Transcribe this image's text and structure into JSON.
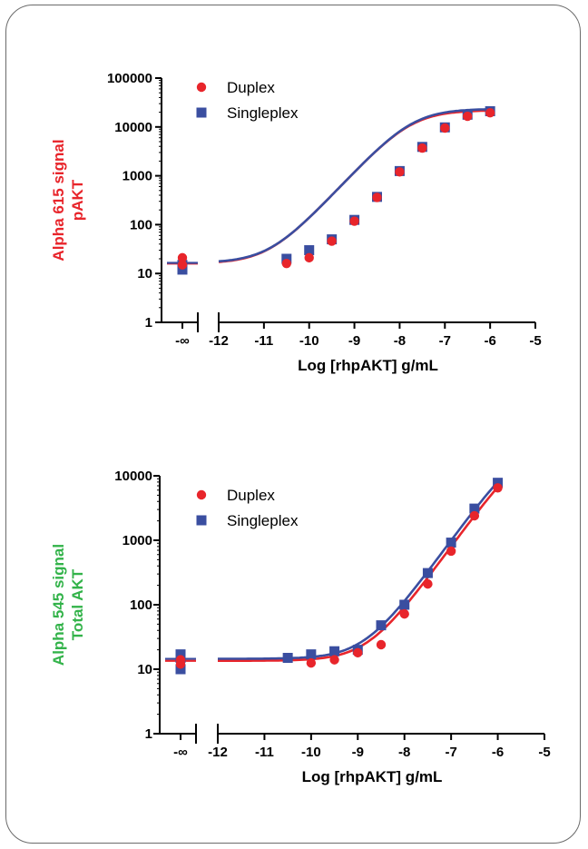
{
  "colors": {
    "duplex": "#e8252b",
    "singleplex": "#3a4ea0",
    "pAKT_label": "#e8252b",
    "total_label": "#33b34a"
  },
  "chart_data": [
    {
      "type": "scatter",
      "ylabel_lines": [
        "Alpha 615 signal",
        "pAKT"
      ],
      "xlabel": "Log [rhpAKT] g/mL",
      "yscale": "log",
      "ylim": [
        1,
        100000
      ],
      "xlim": [
        -12,
        -5
      ],
      "yticks": [
        "1",
        "10",
        "100",
        "1000",
        "10000",
        "100000"
      ],
      "xticks": [
        "-12",
        "-11",
        "-10",
        "-9",
        "-8",
        "-7",
        "-6",
        "-5"
      ],
      "x_break_label": "-∞",
      "legend": [
        "Duplex",
        "Singleplex"
      ],
      "series": [
        {
          "name": "Duplex",
          "zero_dose_values": [
            21,
            15
          ],
          "x": [
            -10.5,
            -10,
            -9.5,
            -9,
            -8.5,
            -8,
            -7.5,
            -7,
            -6.5,
            -6
          ],
          "values": [
            16,
            21,
            46,
            118,
            360,
            1200,
            3700,
            9500,
            16500,
            19500
          ],
          "fit": {
            "bottom": 16,
            "top": 22000,
            "logEC50": -7.75,
            "hill": 1.0
          }
        },
        {
          "name": "Singleplex",
          "zero_dose_values": [
            15,
            12
          ],
          "x": [
            -10.5,
            -10,
            -9.5,
            -9,
            -8.5,
            -8,
            -7.5,
            -7,
            -6.5,
            -6
          ],
          "values": [
            20,
            30,
            50,
            125,
            370,
            1250,
            3900,
            9800,
            17800,
            21000
          ],
          "fit": {
            "bottom": 16.5,
            "top": 23500,
            "logEC50": -7.72,
            "hill": 1.0
          }
        }
      ]
    },
    {
      "type": "scatter",
      "ylabel_lines": [
        "Alpha 545 signal",
        "Total AKT"
      ],
      "xlabel": "Log [rhpAKT] g/mL",
      "yscale": "log",
      "ylim": [
        1,
        10000
      ],
      "xlim": [
        -12,
        -5
      ],
      "yticks": [
        "1",
        "10",
        "100",
        "1000",
        "10000"
      ],
      "xticks": [
        "-12",
        "-11",
        "-10",
        "-9",
        "-8",
        "-7",
        "-6",
        "-5"
      ],
      "x_break_label": "-∞",
      "legend": [
        "Duplex",
        "Singleplex"
      ],
      "series": [
        {
          "name": "Duplex",
          "zero_dose_values": [
            14,
            12
          ],
          "x": [
            -10,
            -9.5,
            -9,
            -8.5,
            -8,
            -7.5,
            -7,
            -6.5,
            -6
          ],
          "values": [
            12.5,
            14,
            18,
            24,
            72,
            210,
            680,
            2400,
            6500
          ],
          "fit": {
            "bottom": 13.5,
            "top": 40000,
            "logEC50": -5.3,
            "hill": 1.0
          }
        },
        {
          "name": "Singleplex",
          "zero_dose_values": [
            17,
            15,
            10
          ],
          "x": [
            -10.5,
            -10,
            -9.5,
            -9,
            -8.5,
            -8,
            -7.5,
            -7,
            -6.5,
            -6
          ],
          "values": [
            15,
            17,
            19,
            20,
            48,
            100,
            310,
            920,
            3100,
            7800
          ],
          "fit": {
            "bottom": 14.5,
            "top": 40000,
            "logEC50": -5.4,
            "hill": 1.0
          }
        }
      ]
    }
  ]
}
